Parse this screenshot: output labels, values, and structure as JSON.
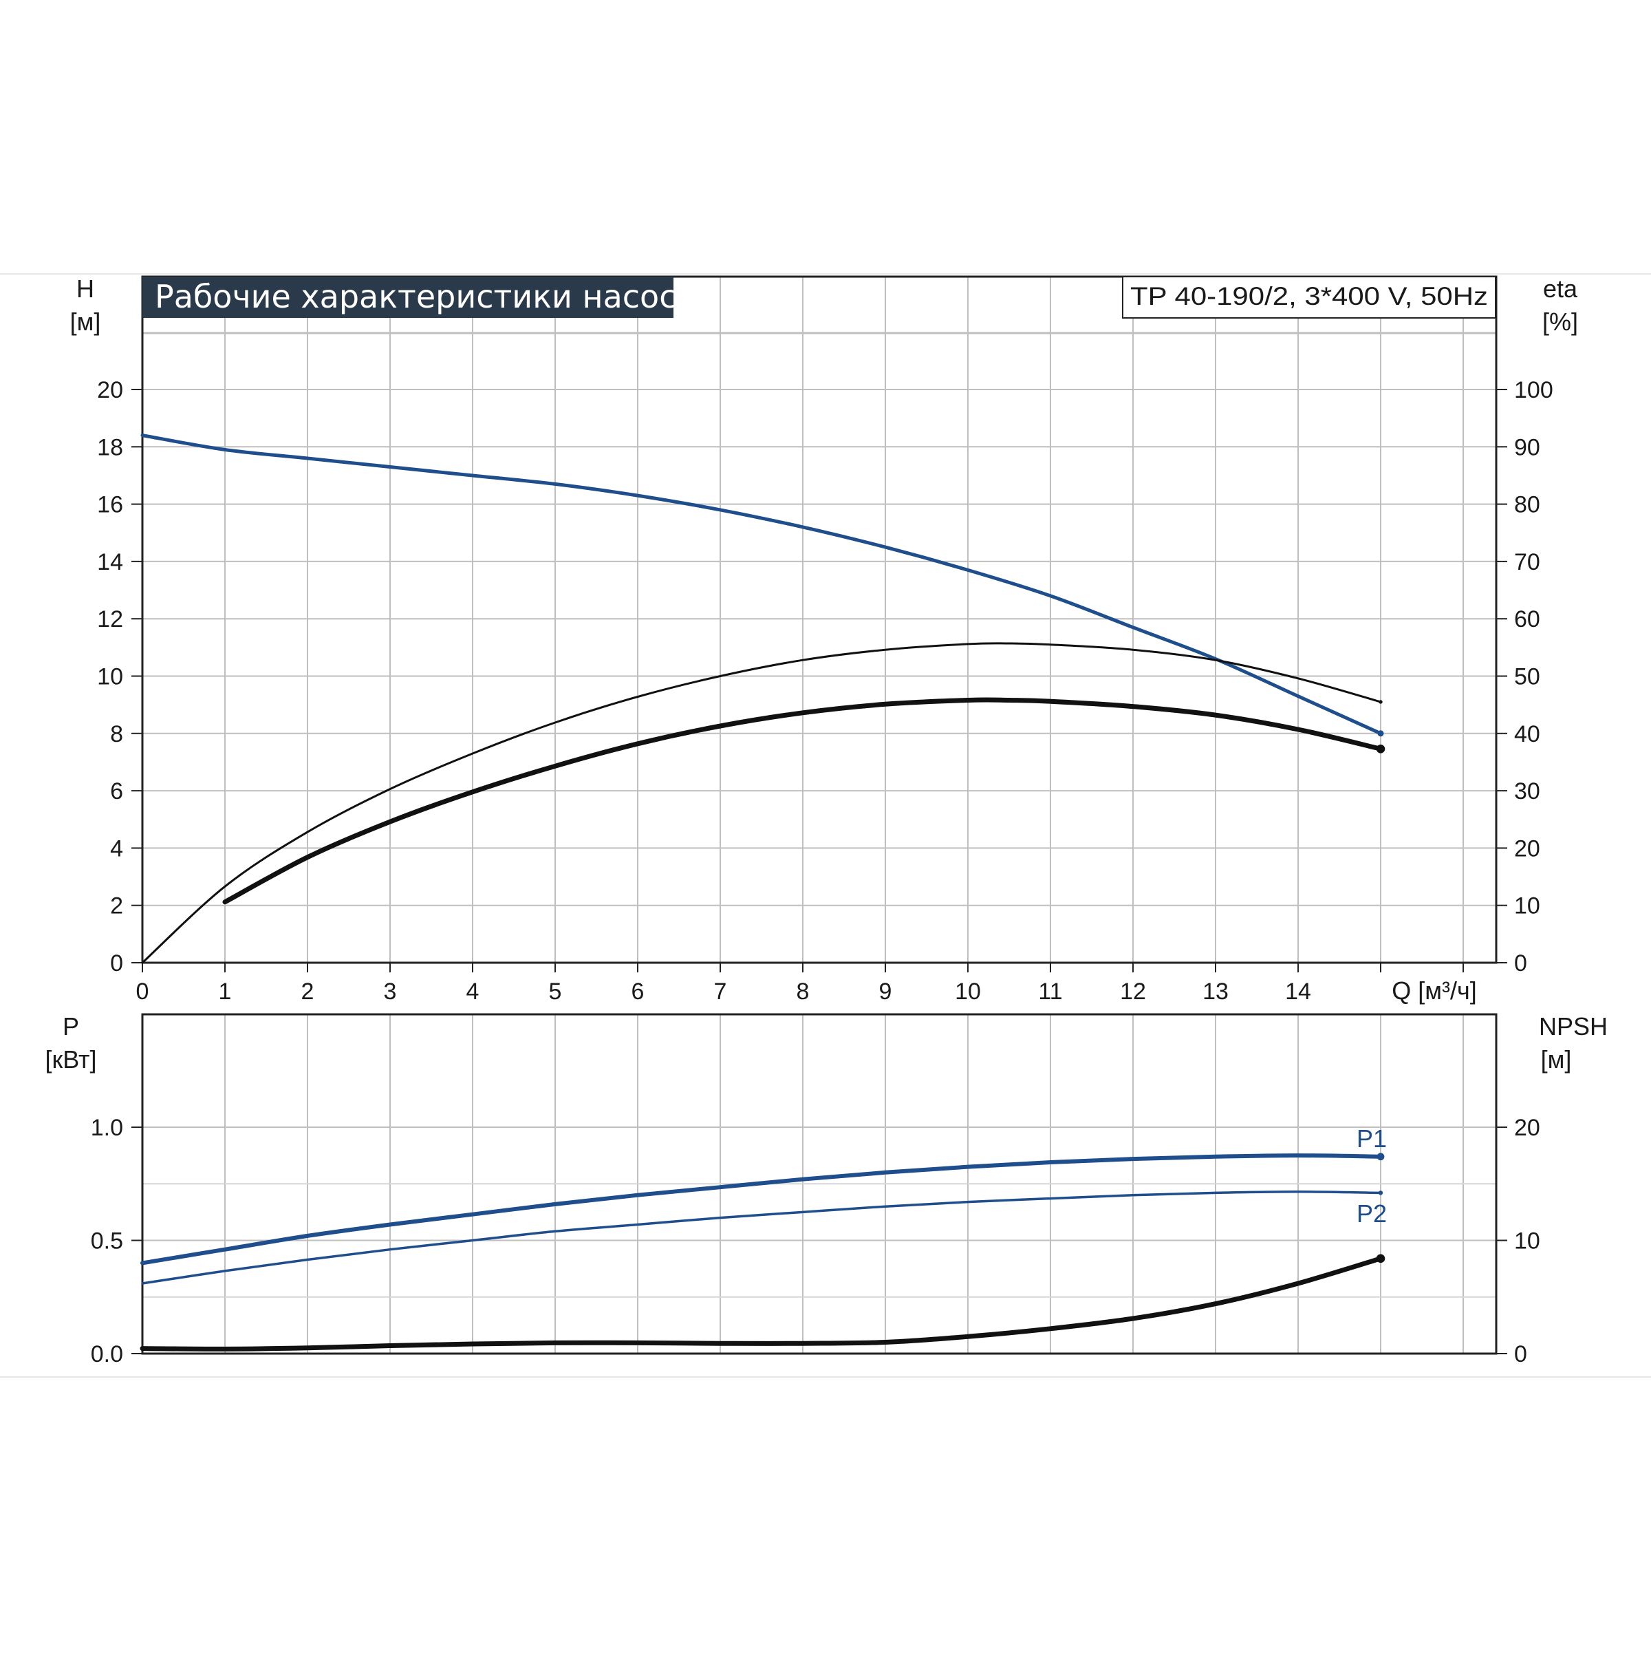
{
  "chart_data": [
    {
      "type": "line",
      "title": "Рабочие характеристики насоса",
      "model_label": "TP 40-190/2, 3*400 V, 50Hz",
      "y_axis_left": {
        "label": "H",
        "unit": "[м]",
        "range": [
          0,
          20
        ],
        "ticks": [
          "0",
          "2",
          "4",
          "6",
          "8",
          "10",
          "12",
          "14",
          "16",
          "18",
          "20"
        ]
      },
      "y_axis_right": {
        "label": "eta",
        "unit": "[%]",
        "range": [
          0,
          100
        ],
        "ticks": [
          "0",
          "10",
          "20",
          "30",
          "40",
          "50",
          "60",
          "70",
          "80",
          "90",
          "100"
        ]
      },
      "x_axis": {
        "label": "Q [м³/ч]",
        "range": [
          0,
          16.4
        ],
        "ticks": [
          "0",
          "1",
          "2",
          "3",
          "4",
          "5",
          "6",
          "7",
          "8",
          "9",
          "10",
          "11",
          "12",
          "13",
          "14"
        ]
      },
      "grid": true,
      "series": [
        {
          "axis": "left",
          "color": "#1f4e8c",
          "points": [
            [
              0,
              18.4
            ],
            [
              1,
              17.9
            ],
            [
              2,
              17.6
            ],
            [
              3,
              17.3
            ],
            [
              4,
              17.0
            ],
            [
              5,
              16.7
            ],
            [
              6,
              16.3
            ],
            [
              7,
              15.8
            ],
            [
              8,
              15.2
            ],
            [
              9,
              14.5
            ],
            [
              10,
              13.7
            ],
            [
              11,
              12.8
            ],
            [
              12,
              11.7
            ],
            [
              13,
              10.6
            ],
            [
              14,
              9.3
            ],
            [
              15,
              8.0
            ]
          ]
        },
        {
          "axis": "right",
          "color": "#111111",
          "points": [
            [
              0,
              0
            ],
            [
              1,
              13.3
            ],
            [
              2,
              22.8
            ],
            [
              3,
              30.3
            ],
            [
              4,
              36.5
            ],
            [
              5,
              41.9
            ],
            [
              6,
              46.4
            ],
            [
              7,
              50.0
            ],
            [
              8,
              52.8
            ],
            [
              9,
              54.6
            ],
            [
              10,
              55.6
            ],
            [
              10.5,
              55.7
            ],
            [
              11,
              55.5
            ],
            [
              12,
              54.6
            ],
            [
              13,
              52.8
            ],
            [
              14,
              49.6
            ],
            [
              15,
              45.5
            ]
          ]
        },
        {
          "axis": "right",
          "color": "#111111",
          "points": [
            [
              1,
              10.6
            ],
            [
              2,
              18.4
            ],
            [
              3,
              24.6
            ],
            [
              4,
              29.8
            ],
            [
              5,
              34.3
            ],
            [
              6,
              38.2
            ],
            [
              7,
              41.3
            ],
            [
              8,
              43.6
            ],
            [
              9,
              45.1
            ],
            [
              10,
              45.8
            ],
            [
              10.5,
              45.8
            ],
            [
              11,
              45.6
            ],
            [
              12,
              44.7
            ],
            [
              13,
              43.2
            ],
            [
              14,
              40.7
            ],
            [
              15,
              37.3
            ]
          ]
        }
      ]
    },
    {
      "type": "line",
      "y_axis_left": {
        "label": "P",
        "unit": "[кВт]",
        "range": [
          0,
          1.0
        ],
        "ticks": [
          "0.0",
          "0.5",
          "1.0"
        ]
      },
      "y_axis_right": {
        "label": "NPSH",
        "unit": "[м]",
        "range": [
          0,
          20
        ],
        "ticks": [
          "0",
          "10",
          "20"
        ]
      },
      "x_axis": {
        "range": [
          0,
          16.4
        ]
      },
      "grid": true,
      "series": [
        {
          "name": "P1",
          "axis": "left",
          "color": "#1f4e8c",
          "points": [
            [
              0,
              0.4
            ],
            [
              1,
              0.46
            ],
            [
              2,
              0.52
            ],
            [
              3,
              0.57
            ],
            [
              4,
              0.615
            ],
            [
              5,
              0.66
            ],
            [
              6,
              0.7
            ],
            [
              7,
              0.735
            ],
            [
              8,
              0.77
            ],
            [
              9,
              0.8
            ],
            [
              10,
              0.825
            ],
            [
              11,
              0.845
            ],
            [
              12,
              0.86
            ],
            [
              13,
              0.87
            ],
            [
              14,
              0.875
            ],
            [
              15,
              0.87
            ]
          ]
        },
        {
          "name": "P2",
          "axis": "left",
          "color": "#1f4e8c",
          "points": [
            [
              0,
              0.31
            ],
            [
              1,
              0.365
            ],
            [
              2,
              0.415
            ],
            [
              3,
              0.46
            ],
            [
              4,
              0.5
            ],
            [
              5,
              0.54
            ],
            [
              6,
              0.57
            ],
            [
              7,
              0.6
            ],
            [
              8,
              0.625
            ],
            [
              9,
              0.65
            ],
            [
              10,
              0.67
            ],
            [
              11,
              0.685
            ],
            [
              12,
              0.7
            ],
            [
              13,
              0.71
            ],
            [
              14,
              0.715
            ],
            [
              15,
              0.71
            ]
          ]
        },
        {
          "axis": "right",
          "color": "#111111",
          "points": [
            [
              0,
              0.45
            ],
            [
              1,
              0.4
            ],
            [
              2,
              0.5
            ],
            [
              3,
              0.7
            ],
            [
              4,
              0.85
            ],
            [
              5,
              0.95
            ],
            [
              6,
              0.95
            ],
            [
              7,
              0.9
            ],
            [
              8,
              0.9
            ],
            [
              9,
              1.0
            ],
            [
              10,
              1.5
            ],
            [
              11,
              2.2
            ],
            [
              12,
              3.1
            ],
            [
              13,
              4.4
            ],
            [
              14,
              6.2
            ],
            [
              15,
              8.4
            ]
          ]
        }
      ]
    }
  ]
}
